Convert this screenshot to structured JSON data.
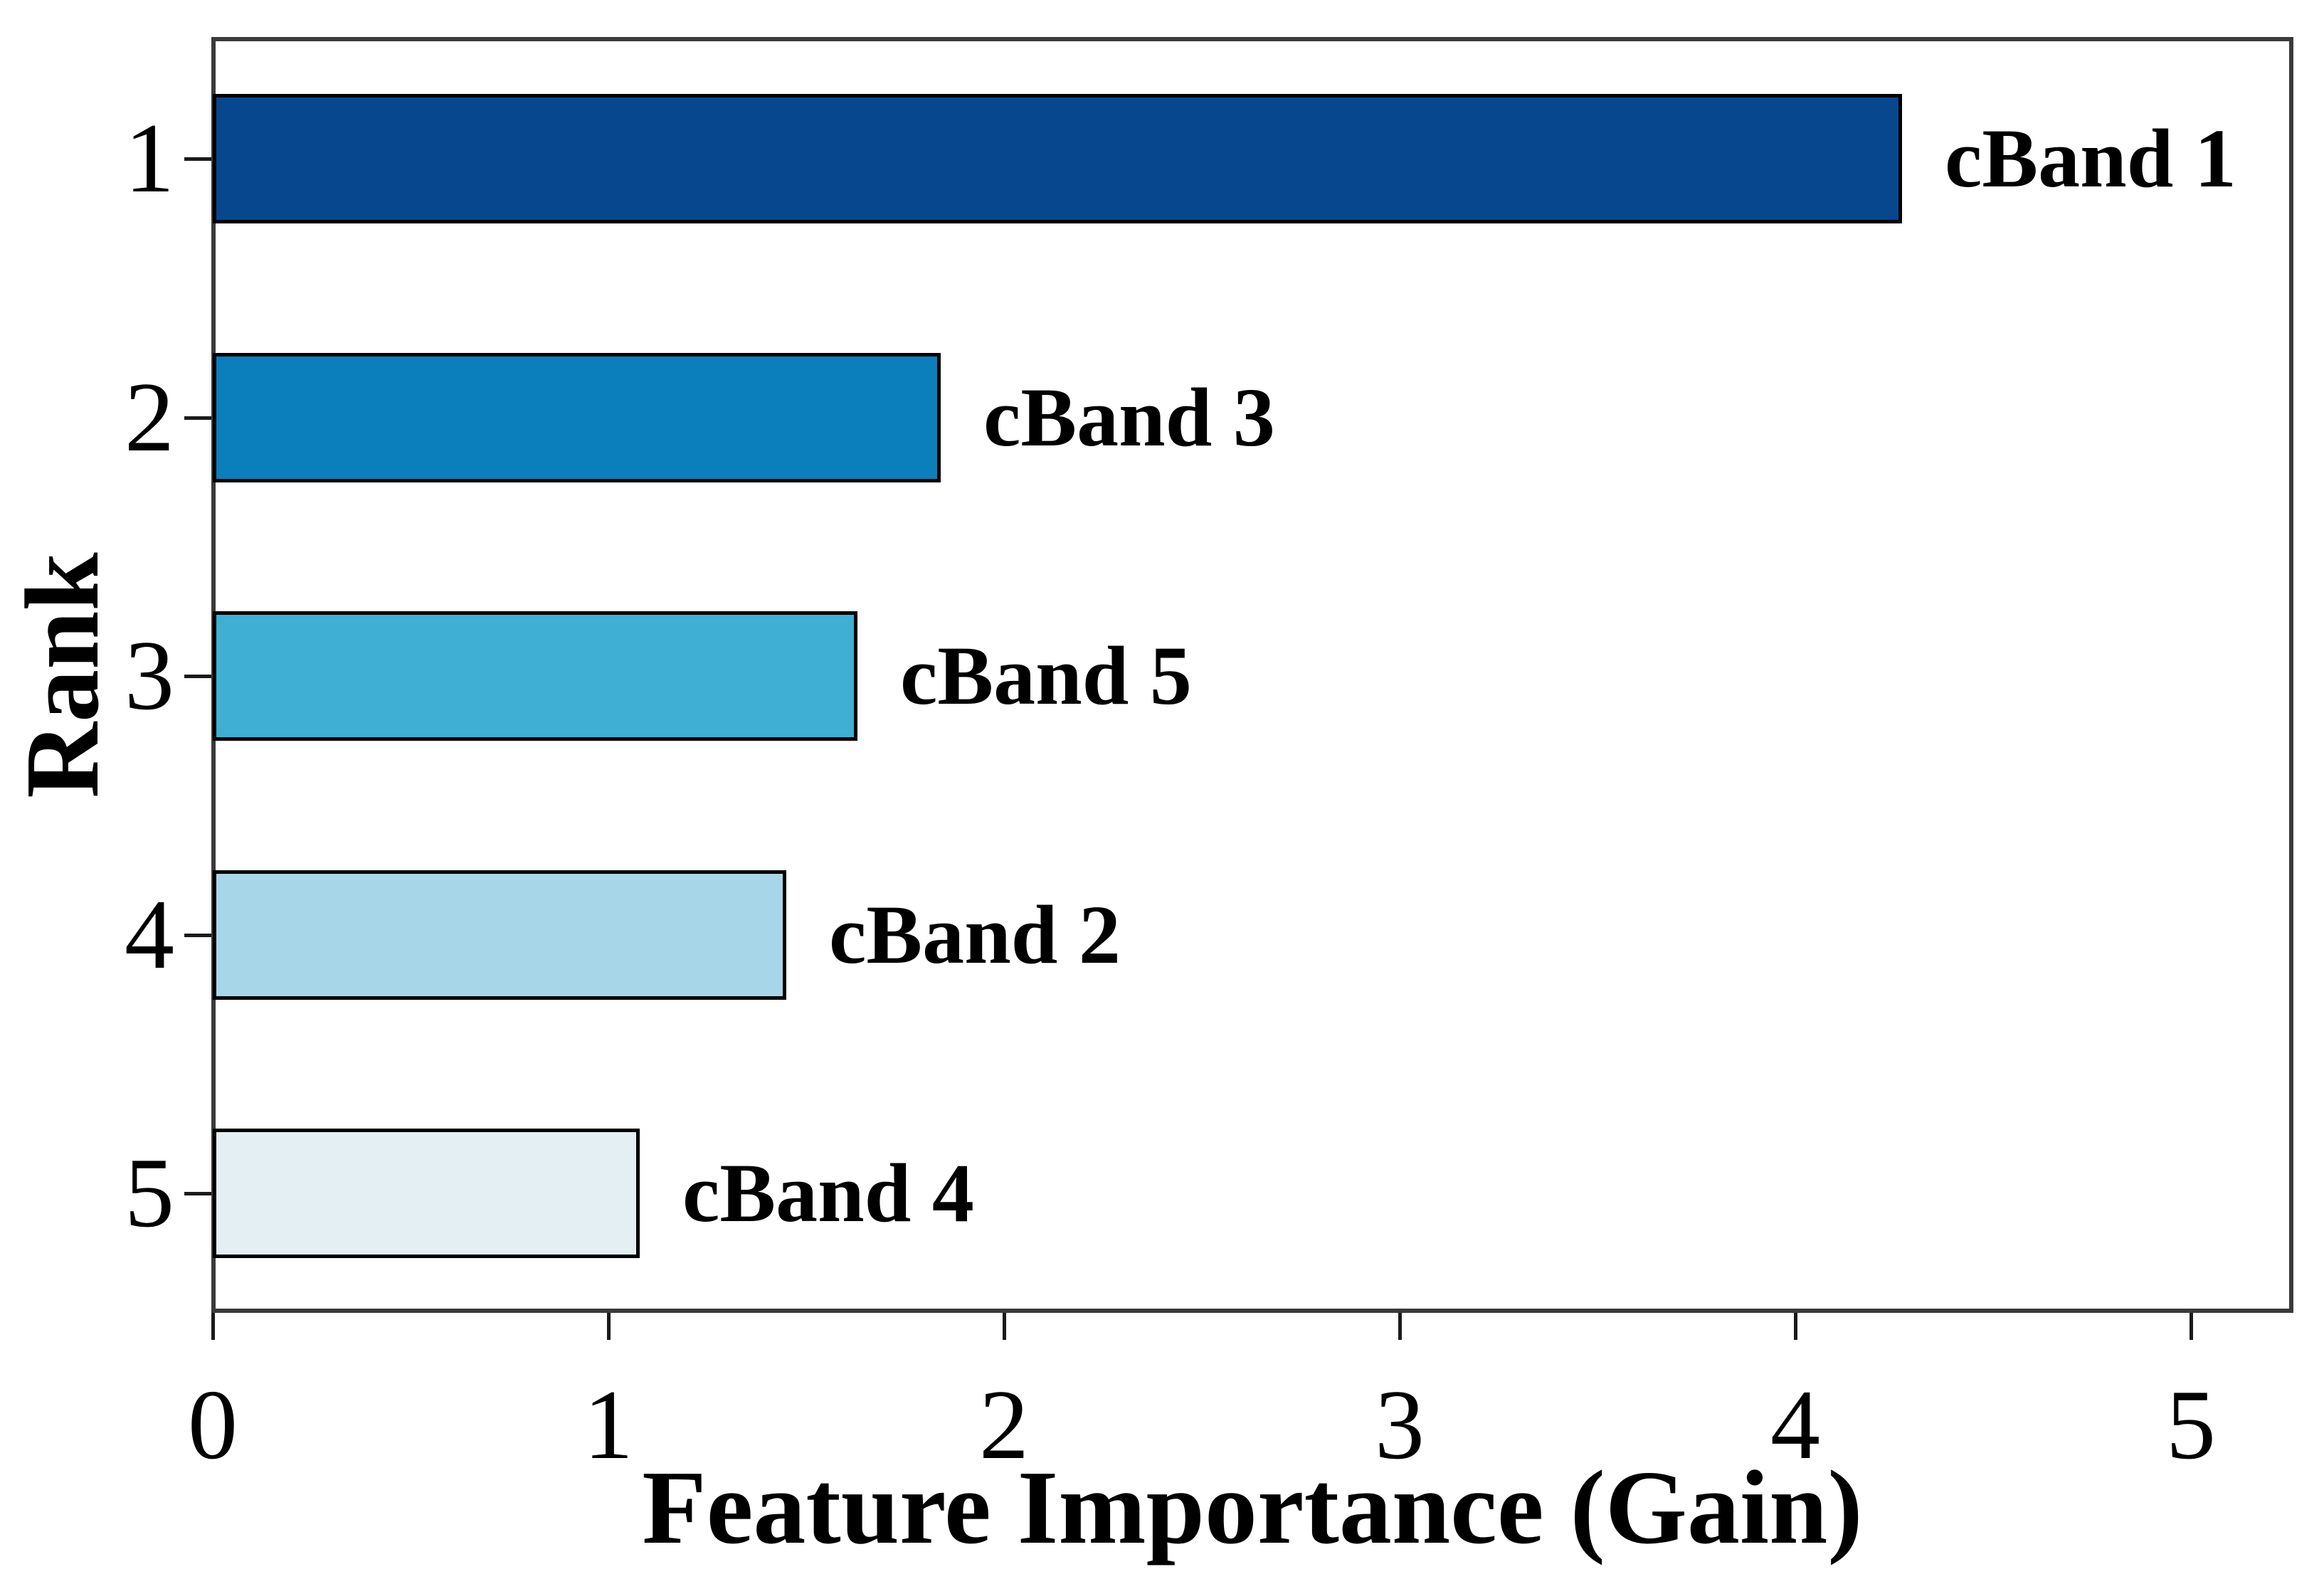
{
  "chart_data": {
    "type": "bar",
    "orientation": "horizontal",
    "title": "",
    "xlabel": "Feature Importance (Gain)",
    "ylabel": "Rank",
    "x_tick_labels": [
      "0",
      "1",
      "2",
      "3",
      "4",
      "5"
    ],
    "x_tick_values": [
      0,
      1,
      2,
      3,
      4,
      5
    ],
    "y_tick_labels": [
      "1",
      "2",
      "3",
      "4",
      "5"
    ],
    "xlim": [
      0,
      5.26
    ],
    "grid": false,
    "legend": false,
    "bar_edge_color": "#000000",
    "spine_color": "#3a3a3a",
    "bars": [
      {
        "rank": "1",
        "label": "cBand 1",
        "value": 4.27,
        "color": "#07478e"
      },
      {
        "rank": "2",
        "label": "cBand 3",
        "value": 1.84,
        "color": "#0b7ebc"
      },
      {
        "rank": "3",
        "label": "cBand 5",
        "value": 1.63,
        "color": "#3fafd4"
      },
      {
        "rank": "4",
        "label": "cBand 2",
        "value": 1.45,
        "color": "#a8d6e9"
      },
      {
        "rank": "5",
        "label": "cBand 4",
        "value": 1.08,
        "color": "#e4eff3"
      }
    ]
  }
}
